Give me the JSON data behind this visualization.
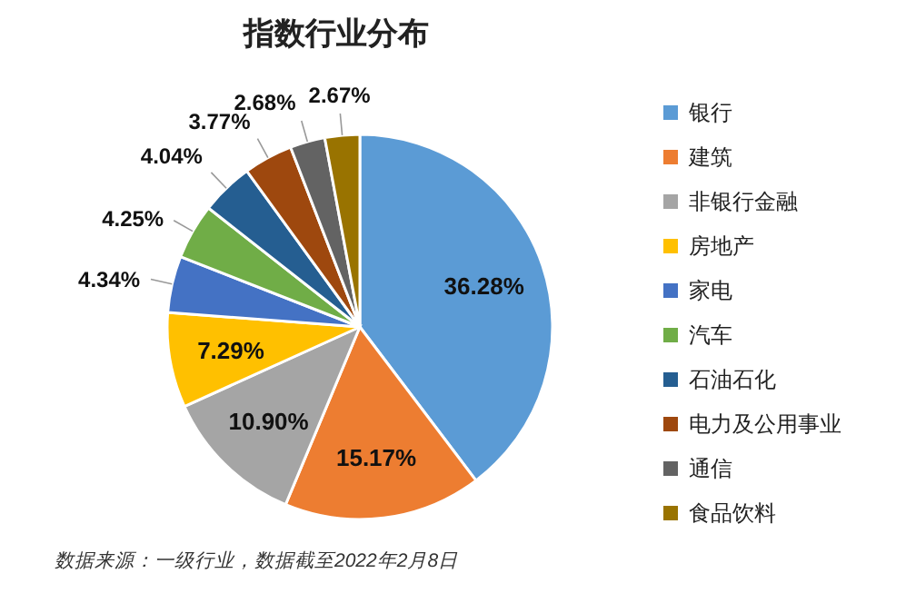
{
  "chart_data": {
    "type": "pie",
    "title": "指数行业分布",
    "categories": [
      "银行",
      "建筑",
      "非银行金融",
      "房地产",
      "家电",
      "汽车",
      "石油石化",
      "电力及公用事业",
      "通信",
      "食品饮料"
    ],
    "values": [
      36.28,
      15.17,
      10.9,
      7.29,
      4.34,
      4.25,
      4.04,
      3.77,
      2.68,
      2.67
    ],
    "value_labels": [
      "36.28%",
      "15.17%",
      "10.90%",
      "7.29%",
      "4.34%",
      "4.25%",
      "4.04%",
      "3.77%",
      "2.68%",
      "2.67%"
    ],
    "colors": [
      "#5b9bd5",
      "#ed7d31",
      "#a5a5a5",
      "#ffc000",
      "#4472c4",
      "#70ad47",
      "#255e91",
      "#9e480e",
      "#636363",
      "#997300"
    ],
    "legend": "right",
    "annotations": [
      "数据来源：一级行业，数据截至2022年2月8日"
    ]
  }
}
